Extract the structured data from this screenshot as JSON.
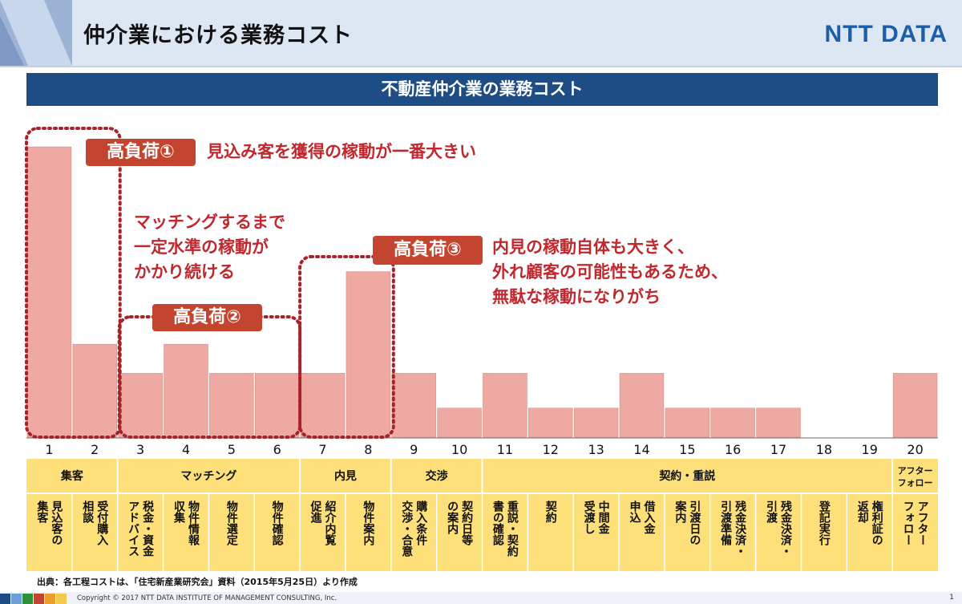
{
  "header": {
    "title": "仲介業における業務コスト",
    "logo": "NTT DATA"
  },
  "colors": {
    "bar": "#eeaaa2",
    "bar_border": "#d88a82",
    "accent_red": "#c4452f",
    "highlight_text": "#c0282e",
    "title_bar": "#1e4c84",
    "phase_band": "#fde07a",
    "dotted_box": "#a8222a"
  },
  "chart_data": {
    "type": "bar",
    "title": "不動産仲介業の業務コスト",
    "categories": [
      "1",
      "2",
      "3",
      "4",
      "5",
      "6",
      "7",
      "8",
      "9",
      "10",
      "11",
      "12",
      "13",
      "14",
      "15",
      "16",
      "17",
      "18",
      "19",
      "20"
    ],
    "values": [
      10,
      3.2,
      2.2,
      3.2,
      2.2,
      2.2,
      2.2,
      5.7,
      2.2,
      1.0,
      2.2,
      1.0,
      1.0,
      2.2,
      1.0,
      1.0,
      1.0,
      0,
      0,
      2.2
    ],
    "ylim": [
      0,
      10.5
    ],
    "xlabel": "",
    "ylabel": "",
    "phases": [
      {
        "label": "集客",
        "from": 1,
        "to": 2
      },
      {
        "label": "マッチング",
        "from": 3,
        "to": 6
      },
      {
        "label": "内見",
        "from": 7,
        "to": 8
      },
      {
        "label": "交渉",
        "from": 9,
        "to": 10
      },
      {
        "label": "契約・重説",
        "from": 11,
        "to": 19
      },
      {
        "label": "アフター\nフォロー",
        "from": 20,
        "to": 20
      }
    ],
    "tasks": [
      "見込客の\n集客",
      "受付購入\n相談",
      "税金・資金\nアドバイス",
      "物件情報\n収集",
      "物件選定",
      "物件確認",
      "紹介内覧\n促進",
      "物件案内",
      "購入条件\n交渉・合意",
      "契約日等\nの案内",
      "重説・契約\n書の確認",
      "契約",
      "中間金\n受渡し",
      "借入金\n申込",
      "引渡日の\n案内",
      "残金決済・\n引渡準備",
      "残金決済・\n引渡",
      "登記実行",
      "権利証の\n返却",
      "アフター\nフォロー"
    ],
    "annotations": [
      {
        "tag": "高負荷①",
        "text": "見込み客を獲得の稼動が一番大きい"
      },
      {
        "tag": "高負荷②",
        "text": "マッチングするまで\n一定水準の稼動が\nかかり続ける"
      },
      {
        "tag": "高負荷③",
        "text": "内見の稼動自体も大きく、\n外れ顧客の可能性もあるため、\n無駄な稼動になりがち"
      }
    ]
  },
  "footer": {
    "source": "出典：各工程コストは、「住宅新産業研究会」資料（2015年5月25日）より作成",
    "copyright": "Copyright © 2017 NTT DATA INSTITUTE OF MANAGEMENT CONSULTING, Inc.",
    "page": "1"
  }
}
